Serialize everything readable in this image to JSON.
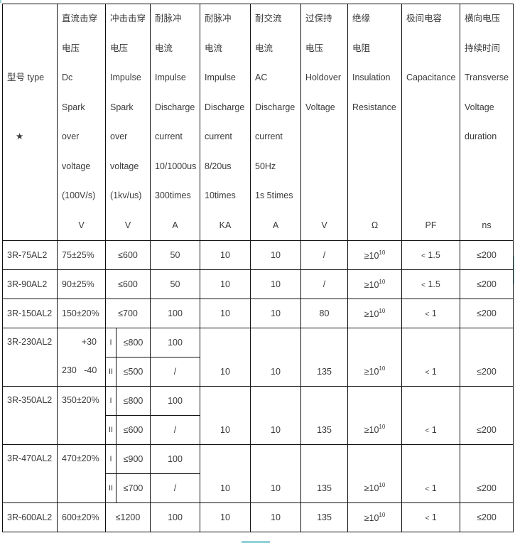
{
  "header": {
    "type": {
      "lines": [
        "",
        "",
        "型号  type",
        "",
        "★"
      ]
    },
    "columns": [
      {
        "lines": [
          "直流击穿",
          "电压",
          "Dc",
          "Spark",
          "over",
          "voltage",
          "(100V/s)"
        ],
        "unit": "V"
      },
      {
        "lines": [
          "冲击击穿",
          "电压",
          "Impulse",
          "Spark",
          "over",
          "voltage",
          "(1kv/us)"
        ],
        "unit": "V"
      },
      {
        "lines": [
          "耐脉冲",
          "电流",
          "Impulse",
          "Discharge",
          "current",
          "10/1000us",
          "300times"
        ],
        "unit": "A"
      },
      {
        "lines": [
          "耐脉冲",
          "电流",
          "Impulse",
          "Discharge",
          "current",
          " 8/20us",
          "10times"
        ],
        "unit": "KA"
      },
      {
        "lines": [
          "耐交流",
          "电流",
          "AC",
          "Discharge",
          "current",
          "50Hz",
          "1s 5times"
        ],
        "unit": "A"
      },
      {
        "lines": [
          "过保持",
          "电压",
          "Holdover",
          "Voltage",
          "",
          "",
          ""
        ],
        "unit": "V"
      },
      {
        "lines": [
          "绝缘",
          "电阻",
          "Insulation",
          "Resistance",
          "",
          "",
          ""
        ],
        "unit": "Ω"
      },
      {
        "lines": [
          "极间电容",
          "",
          "Capacitance",
          "",
          "",
          "",
          ""
        ],
        "unit": "PF"
      },
      {
        "lines": [
          "横向电压",
          "持续时间",
          "Transverse",
          "Voltage",
          "duration",
          "",
          ""
        ],
        "unit": "ns"
      }
    ]
  },
  "rows": [
    {
      "type": "3R-75AL2",
      "dc": "75±25%",
      "impulse": "≤600",
      "imp_10_1000": "50",
      "imp_8_20": "10",
      "ac": "10",
      "holdover": "/",
      "insulation": {
        "base": "≥10",
        "exp": "10"
      },
      "capacitance": "1.5",
      "transverse": "≤200"
    },
    {
      "type": "3R-90AL2",
      "dc": "90±25%",
      "impulse": "≤600",
      "imp_10_1000": "50",
      "imp_8_20": "10",
      "ac": "10",
      "holdover": "/",
      "insulation": {
        "base": "≥10",
        "exp": "10"
      },
      "capacitance": "1.5",
      "transverse": "≤200"
    },
    {
      "type": "3R-150AL2",
      "dc": "150±20%",
      "impulse": "≤700",
      "imp_10_1000": "100",
      "imp_8_20": "10",
      "ac": "10",
      "holdover": "80",
      "insulation": {
        "base": "≥10",
        "exp": "10"
      },
      "capacitance": "1",
      "transverse": "≤200"
    },
    {
      "type": "3R-230AL2",
      "dc_top": "+30",
      "dc": "230   -40",
      "sub": [
        {
          "mode": "I",
          "impulse": "≤800",
          "imp_10_1000": "100"
        },
        {
          "mode": "II",
          "impulse": "≤500",
          "imp_10_1000": "/"
        }
      ],
      "imp_8_20": "10",
      "ac": "",
      "holdover": "135",
      "insulation": {
        "base": "≥10",
        "exp": "10"
      },
      "capacitance": "1",
      "transverse": "≤200"
    },
    {
      "type": "3R-350AL2",
      "dc": "350±20%",
      "sub": [
        {
          "mode": "I",
          "impulse": "≤800",
          "imp_10_1000": "100"
        },
        {
          "mode": "II",
          "impulse": "≤600",
          "imp_10_1000": "/"
        }
      ],
      "imp_8_20": "10",
      "ac": "10",
      "holdover": "135",
      "insulation": {
        "base": "≥10",
        "exp": "10"
      },
      "capacitance": "1",
      "transverse": "≤200"
    },
    {
      "type": "3R-470AL2",
      "dc": "470±20%",
      "sub": [
        {
          "mode": "I",
          "impulse": "≤900",
          "imp_10_1000": "100"
        },
        {
          "mode": "II",
          "impulse": "≤700",
          "imp_10_1000": "/"
        }
      ],
      "imp_8_20": "10",
      "ac": "10",
      "holdover": "135",
      "insulation": {
        "base": "≥10",
        "exp": "10"
      },
      "capacitance": "1",
      "transverse": "≤200"
    },
    {
      "type": "3R-600AL2",
      "dc": "600±20%",
      "impulse": "≤1200",
      "imp_10_1000": "100",
      "imp_8_20": "10",
      "ac": "10",
      "holdover": "135",
      "insulation": {
        "base": "≥10",
        "exp": "10"
      },
      "capacitance": "1",
      "transverse": "≤200"
    }
  ],
  "capacitance_prefix": "<"
}
